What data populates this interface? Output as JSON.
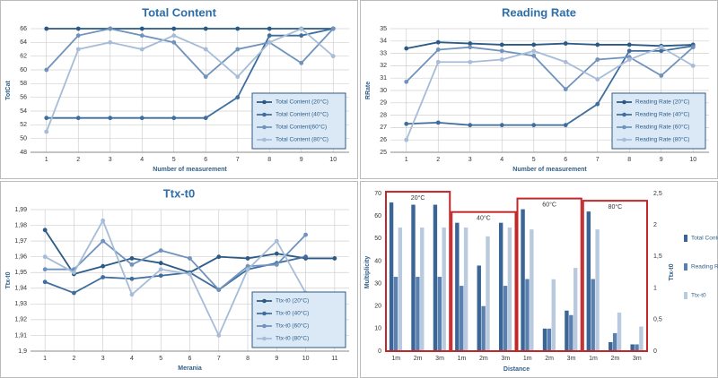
{
  "chart_data": [
    {
      "type": "line",
      "title": "Total Content",
      "x_label": "Number of measurement",
      "y_label": "TotCat",
      "x": [
        1,
        2,
        3,
        4,
        5,
        6,
        7,
        8,
        9,
        10
      ],
      "xlim": [
        0.5,
        10.5
      ],
      "xticks": [
        1,
        2,
        3,
        4,
        5,
        6,
        7,
        8,
        9,
        10
      ],
      "ylim": [
        48,
        66
      ],
      "yticks": [
        48,
        50,
        52,
        54,
        56,
        58,
        60,
        62,
        64,
        66
      ],
      "grid": true,
      "legend": "bottom-right",
      "series": [
        {
          "name": "Total Content (20°C)",
          "color": "#2b5a86",
          "values": [
            66,
            66,
            66,
            66,
            66,
            66,
            66,
            66,
            66,
            66
          ]
        },
        {
          "name": "Total Content (40°C)",
          "color": "#3f6e9e",
          "values": [
            53,
            53,
            53,
            53,
            53,
            53,
            56,
            65,
            65,
            66
          ]
        },
        {
          "name": "Total Content(60°C)",
          "color": "#6f93bd",
          "values": [
            60,
            65,
            66,
            65,
            64,
            59,
            63,
            64,
            61,
            66
          ]
        },
        {
          "name": "Total Content (80°C)",
          "color": "#a6bcd8",
          "values": [
            51,
            63,
            64,
            63,
            65,
            63,
            59,
            64,
            66,
            62
          ]
        }
      ]
    },
    {
      "type": "line",
      "title": "Reading Rate",
      "x_label": "Number of measurement",
      "y_label": "RRate",
      "x": [
        1,
        2,
        3,
        4,
        5,
        6,
        7,
        8,
        9,
        10
      ],
      "xlim": [
        0.5,
        10.5
      ],
      "xticks": [
        1,
        2,
        3,
        4,
        5,
        6,
        7,
        8,
        9,
        10
      ],
      "ylim": [
        25,
        35
      ],
      "yticks": [
        25,
        26,
        27,
        28,
        29,
        30,
        31,
        32,
        33,
        34,
        35
      ],
      "grid": true,
      "legend": "bottom-right",
      "series": [
        {
          "name": "Reading Rate (20°C)",
          "color": "#2b5a86",
          "values": [
            33.4,
            33.9,
            33.8,
            33.7,
            33.7,
            33.8,
            33.7,
            33.7,
            33.6,
            33.7
          ]
        },
        {
          "name": "Reading Rate (40°C)",
          "color": "#3f6e9e",
          "values": [
            27.3,
            27.4,
            27.2,
            27.2,
            27.2,
            27.2,
            28.9,
            33.2,
            33.2,
            33.6
          ]
        },
        {
          "name": "Reading Rate (60°C)",
          "color": "#6f93bd",
          "values": [
            30.7,
            33.3,
            33.5,
            33.2,
            32.8,
            30.1,
            32.5,
            32.7,
            31.2,
            33.5
          ]
        },
        {
          "name": "Reading Rate (80°C)",
          "color": "#a6bcd8",
          "values": [
            26.0,
            32.3,
            32.3,
            32.5,
            33.2,
            32.3,
            30.9,
            32.5,
            33.5,
            32.0
          ]
        }
      ]
    },
    {
      "type": "line",
      "title": "Ttx-t0",
      "x_label": "Merania",
      "y_label": "Ttx-t0",
      "x": [
        1,
        2,
        3,
        4,
        5,
        6,
        7,
        8,
        9,
        10,
        11
      ],
      "xlim": [
        0.5,
        11.5
      ],
      "xticks": [
        1,
        2,
        3,
        4,
        5,
        6,
        7,
        8,
        9,
        10,
        11
      ],
      "ylim": [
        1.9,
        1.99
      ],
      "yticks": [
        {
          "value": 1.9,
          "label": "1,9"
        },
        {
          "value": 1.91,
          "label": "1,91"
        },
        {
          "value": 1.92,
          "label": "1,92"
        },
        {
          "value": 1.93,
          "label": "1,93"
        },
        {
          "value": 1.94,
          "label": "1,94"
        },
        {
          "value": 1.95,
          "label": "1,95"
        },
        {
          "value": 1.96,
          "label": "1,96"
        },
        {
          "value": 1.97,
          "label": "1,97"
        },
        {
          "value": 1.98,
          "label": "1,98"
        },
        {
          "value": 1.99,
          "label": "1,99"
        }
      ],
      "grid": true,
      "legend": "bottom-right",
      "series": [
        {
          "name": "Ttx-t0 (20°C)",
          "color": "#2b5a86",
          "values": [
            1.977,
            1.949,
            1.954,
            1.959,
            1.956,
            1.95,
            1.96,
            1.959,
            1.962,
            1.959,
            1.959
          ]
        },
        {
          "name": "Ttx-t0 (40°C)",
          "color": "#3f6e9e",
          "values": [
            1.944,
            1.937,
            1.947,
            1.946,
            1.948,
            1.95,
            1.939,
            1.952,
            1.956,
            1.96,
            null
          ]
        },
        {
          "name": "Ttx-t0 (60°C)",
          "color": "#6f93bd",
          "values": [
            1.952,
            1.952,
            1.97,
            1.955,
            1.964,
            1.959,
            1.939,
            1.954,
            1.955,
            1.974,
            null
          ]
        },
        {
          "name": "Ttx-t0 (80°C)",
          "color": "#a6bcd8",
          "values": [
            1.96,
            1.95,
            1.983,
            1.936,
            1.952,
            1.949,
            1.91,
            1.952,
            1.97,
            1.937,
            null
          ]
        }
      ]
    },
    {
      "type": "bar",
      "x_label": "Distance",
      "y_label": "Multiplicity",
      "y2_label": "Ttx-t0",
      "categories": [
        "1m",
        "2m",
        "3m",
        "1m",
        "2m",
        "3m",
        "1m",
        "2m",
        "3m",
        "1m",
        "2m",
        "3m"
      ],
      "groups": [
        "20°C",
        "40°C",
        "60°C",
        "80°C"
      ],
      "group_color": "#c0282a",
      "ylim": [
        0,
        70
      ],
      "yticks": [
        0,
        10,
        20,
        30,
        40,
        50,
        60,
        70
      ],
      "y2lim": [
        0,
        2.5
      ],
      "y2ticks": [
        0,
        {
          "value": 0.5,
          "label": "0,5"
        },
        1,
        {
          "value": 1.5,
          "label": "1,5"
        },
        2,
        {
          "value": 2.5,
          "label": "2,5"
        }
      ],
      "legend": "right",
      "series": [
        {
          "name": "Total Content",
          "color": "#3a6594",
          "values": [
            66,
            65,
            65,
            57,
            38,
            57,
            63,
            10,
            18,
            62,
            4,
            3
          ]
        },
        {
          "name": "Reading Rate",
          "color": "#5a80af",
          "values": [
            33,
            33,
            33,
            29,
            20,
            29,
            32,
            10,
            16,
            32,
            8,
            3
          ]
        },
        {
          "name": "Ttx-t0",
          "color": "#b9cadf",
          "axis": "y2",
          "values": [
            1.96,
            1.96,
            1.96,
            1.96,
            1.82,
            1.96,
            1.93,
            1.14,
            1.32,
            1.93,
            0.61,
            0.39
          ]
        }
      ]
    }
  ]
}
